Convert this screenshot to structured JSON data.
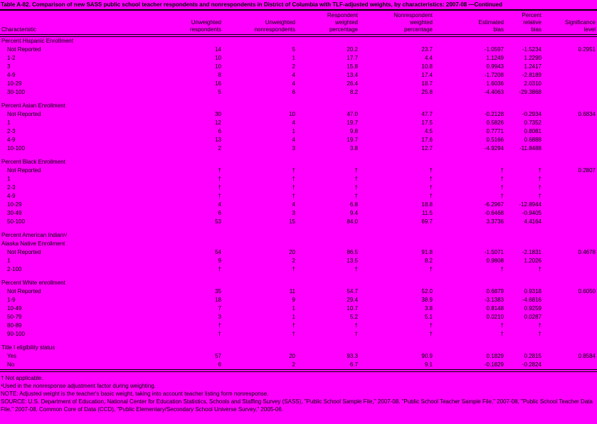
{
  "page": {
    "title": "Table A-82. Comparison of new SASS public school teacher respondents and nonrespondents in District of Columbia with TLF-adjusted weights, by characteristics: 2007-08 —Continued",
    "background_color": "#FF00FF",
    "text_color": "#000000",
    "na_symbol": "†"
  },
  "table": {
    "columns": [
      "Characteristic",
      "Unweighted\nrespondents",
      "Unweighted\nnonrespondents",
      "Respondent\nweighted\npercentage",
      "Nonrespondent\nweighted\npercentage",
      "Estimated\nbias",
      "Percent\nrelative\nbias",
      "Significance\nlevel"
    ],
    "sections": [
      {
        "label": "Percent Hispanic Enrollment",
        "rows": [
          {
            "label": "Not Reported",
            "values": [
              "14",
              "5",
              "20.2",
              "23.7",
              "-1.0597",
              "-1.5234",
              "0.2951"
            ]
          },
          {
            "label": "1-2",
            "values": [
              "10",
              "1",
              "17.7",
              "4.4",
              "1.1249",
              "1.2290",
              ""
            ]
          },
          {
            "label": "3",
            "values": [
              "10",
              "2",
              "15.8",
              "10.8",
              "0.9943",
              "1.2417",
              ""
            ]
          },
          {
            "label": "4-9",
            "values": [
              "8",
              "4",
              "13.4",
              "17.4",
              "-1.7208",
              "-2.8189",
              ""
            ]
          },
          {
            "label": "10-29",
            "values": [
              "16",
              "4",
              "26.4",
              "18.7",
              "1.6036",
              "2.0310",
              ""
            ]
          },
          {
            "label": "30-100",
            "values": [
              "5",
              "6",
              "8.2",
              "25.8",
              "-4.4063",
              "-29.3868",
              ""
            ]
          }
        ]
      },
      {
        "label": "Percent Asian Enrollment",
        "rows": [
          {
            "label": "Not Reported",
            "values": [
              "30",
              "10",
              "47.0",
              "47.7",
              "-0.2128",
              "-0.2934",
              "0.6834"
            ]
          },
          {
            "label": "1",
            "values": [
              "12",
              "4",
              "19.7",
              "17.5",
              "0.5826",
              "0.7352",
              ""
            ]
          },
          {
            "label": "2-3",
            "values": [
              "6",
              "1",
              "9.8",
              "4.5",
              "0.7771",
              "0.8081",
              ""
            ]
          },
          {
            "label": "4-9",
            "values": [
              "13",
              "4",
              "19.7",
              "17.6",
              "0.5166",
              "0.6888",
              ""
            ]
          },
          {
            "label": "10-100",
            "values": [
              "2",
              "3",
              "3.8",
              "12.7",
              "-4.9294",
              "-11.8488",
              ""
            ]
          }
        ]
      },
      {
        "label": "Percent Black Enrollment",
        "rows": [
          {
            "label": "Not Reported",
            "values": [
              "†",
              "†",
              "†",
              "†",
              "†",
              "†",
              "0.2807"
            ]
          },
          {
            "label": "1",
            "values": [
              "†",
              "†",
              "†",
              "†",
              "†",
              "†",
              ""
            ]
          },
          {
            "label": "2-3",
            "values": [
              "†",
              "†",
              "†",
              "†",
              "†",
              "†",
              ""
            ]
          },
          {
            "label": "4-9",
            "values": [
              "†",
              "†",
              "†",
              "†",
              "†",
              "†",
              ""
            ]
          },
          {
            "label": "10-29",
            "values": [
              "4",
              "4",
              "6.8",
              "18.8",
              "-6.2967",
              "-12.8944",
              ""
            ]
          },
          {
            "label": "30-49",
            "values": [
              "6",
              "3",
              "9.4",
              "11.5",
              "-0.6468",
              "-0.9405",
              ""
            ]
          },
          {
            "label": "50-100",
            "values": [
              "53",
              "15",
              "84.0",
              "69.7",
              "3.3736",
              "4.4164",
              ""
            ]
          }
        ]
      },
      {
        "label": "Percent American Indian¹/\nAlaska Native Enrollment",
        "rows": [
          {
            "label": "Not Reported",
            "values": [
              "54",
              "20",
              "86.5",
              "91.8",
              "-1.5071",
              "-2.1831",
              "0.4678"
            ]
          },
          {
            "label": "1",
            "values": [
              "9",
              "2",
              "13.5",
              "8.2",
              "0.9808",
              "1.2026",
              ""
            ]
          },
          {
            "label": "2-100",
            "values": [
              "†",
              "†",
              "†",
              "†",
              "†",
              "†",
              ""
            ]
          }
        ]
      },
      {
        "label": "Percent White enrollment",
        "rows": [
          {
            "label": "Not Reported",
            "values": [
              "35",
              "11",
              "54.7",
              "52.0",
              "0.6879",
              "0.9318",
              "0.6050"
            ]
          },
          {
            "label": "1-9",
            "values": [
              "18",
              "9",
              "29.4",
              "38.9",
              "-3.1383",
              "-4.6816",
              ""
            ]
          },
          {
            "label": "10-49",
            "values": [
              "7",
              "1",
              "10.7",
              "3.8",
              "0.8148",
              "0.9259",
              ""
            ]
          },
          {
            "label": "50-79",
            "values": [
              "3",
              "1",
              "5.2",
              "5.1",
              "0.0210",
              "0.0287",
              ""
            ]
          },
          {
            "label": "80-89",
            "values": [
              "†",
              "†",
              "†",
              "†",
              "†",
              "†",
              ""
            ]
          },
          {
            "label": "90-100",
            "values": [
              "†",
              "†",
              "†",
              "†",
              "†",
              "†",
              ""
            ]
          }
        ]
      },
      {
        "label": "Title I eligibility status",
        "rows": [
          {
            "label": "Yes",
            "values": [
              "57",
              "20",
              "93.3",
              "90.9",
              "0.1829",
              "0.2815",
              "0.8584"
            ]
          },
          {
            "label": "No",
            "values": [
              "6",
              "2",
              "6.7",
              "9.1",
              "-0.1829",
              "-0.2824",
              ""
            ]
          }
        ]
      }
    ]
  },
  "footnotes": [
    "† Not applicable.",
    "¹Used in the nonresponse adjustment factor during weighting.",
    "NOTE: Adjusted weight is the teacher's basic weight, taking into account teacher listing form nonresponse.",
    "SOURCE: U.S. Department of Education, National Center for Education Statistics, Schools and Staffing Survey (SASS), \"Public School Sample File,\" 2007-08, \"Public School Teacher Sample File,\" 2007-08, \"Public School Teacher Data File,\" 2007-08, Common Core of Data (CCD), \"Public Elementary/Secondary School Universe Survey,\" 2005-06."
  ]
}
